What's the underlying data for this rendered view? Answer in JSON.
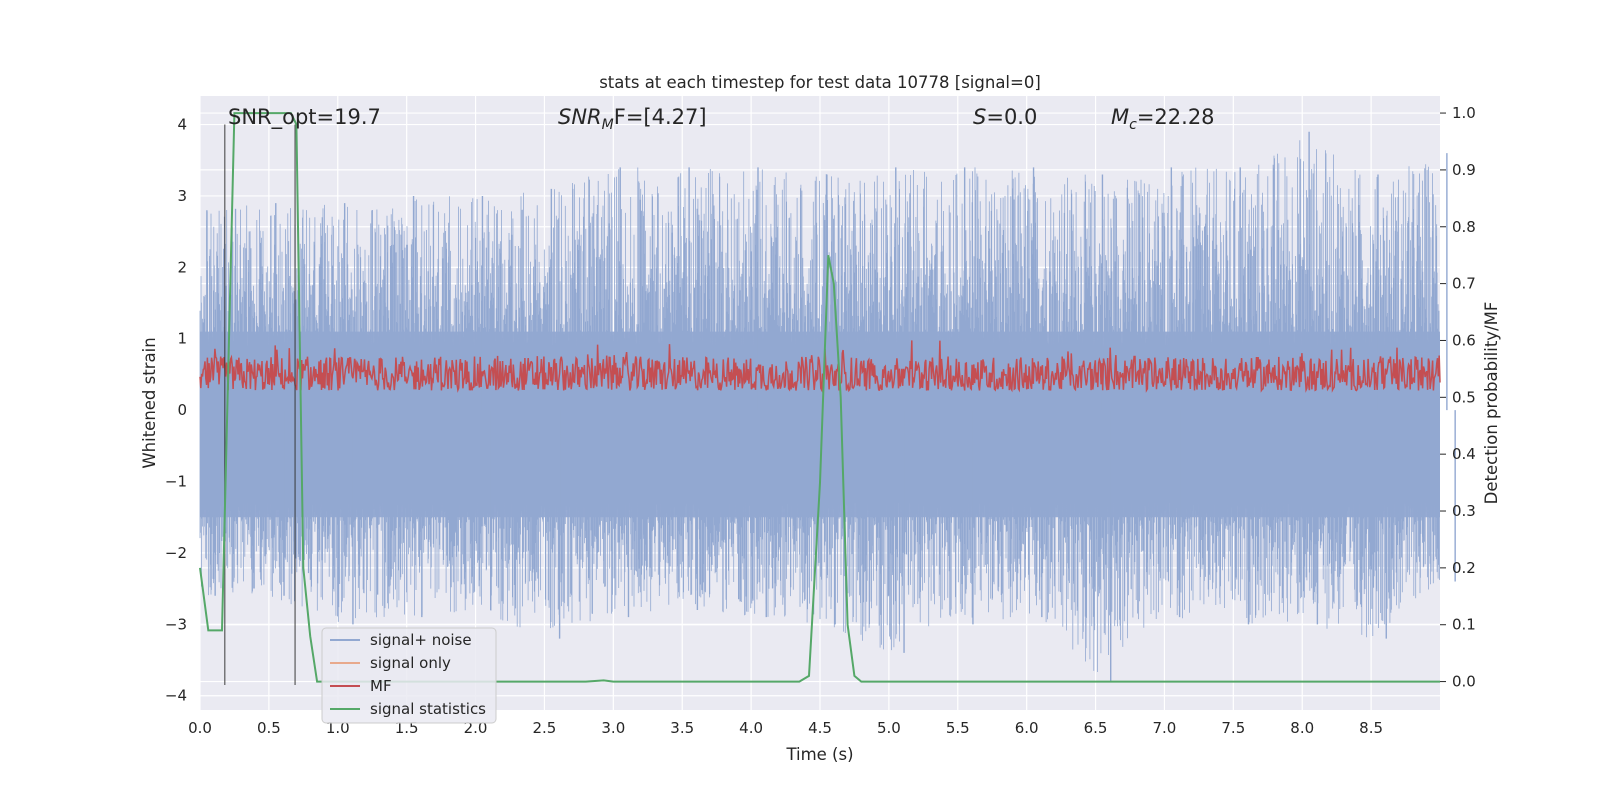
{
  "chart_data": {
    "type": "line",
    "title": "stats at each timestep for test data 10778 [signal=0]",
    "xlabel": "Time (s)",
    "ylabel": "Whitened strain",
    "y2label": "Detection probability/MF",
    "xlim": [
      0.0,
      9.0
    ],
    "ylim": [
      -4.2,
      4.4
    ],
    "y2lim": [
      -0.05,
      1.03
    ],
    "x_ticks": [
      "0.0",
      "0.5",
      "1.0",
      "1.5",
      "2.0",
      "2.5",
      "3.0",
      "3.5",
      "4.0",
      "4.5",
      "5.0",
      "5.5",
      "6.0",
      "6.5",
      "7.0",
      "7.5",
      "8.0",
      "8.5"
    ],
    "y_ticks": [
      "4",
      "3",
      "2",
      "1",
      "0",
      "−1",
      "−2",
      "−3",
      "−4"
    ],
    "y2_ticks": [
      "1.0",
      "0.9",
      "0.8",
      "0.7",
      "0.6",
      "0.5",
      "0.4",
      "0.3",
      "0.2",
      "0.1",
      "0.0"
    ],
    "grid": true,
    "legend_position": "lower-left",
    "annotations": {
      "snr_opt": "SNR_opt=19.7",
      "snr_mf_main": "SNR",
      "snr_mf_sub": "M",
      "snr_mf_rest": "F=[4.27]",
      "s_main": "S",
      "s_rest": "=0.0",
      "mc_main": "M",
      "mc_sub": "c",
      "mc_rest": "=22.28"
    },
    "vertical_lines_x": [
      0.18,
      0.69
    ],
    "series": [
      {
        "name": "signal+ noise",
        "color": "#92a8d1",
        "description_values": "whitened strain noise, roughly within [-4, 4]",
        "envelope": {
          "x": [
            0.0,
            0.5,
            1.0,
            1.5,
            2.0,
            2.5,
            3.0,
            3.5,
            4.0,
            4.5,
            5.0,
            5.5,
            6.0,
            6.5,
            7.0,
            7.5,
            8.0,
            8.5,
            9.0
          ],
          "max": [
            2.8,
            2.9,
            2.9,
            3.0,
            3.0,
            3.1,
            3.4,
            3.4,
            3.4,
            3.3,
            3.4,
            3.4,
            3.4,
            3.3,
            3.4,
            3.4,
            3.9,
            3.3,
            3.6
          ],
          "min": [
            -2.6,
            -2.6,
            -3.0,
            -2.9,
            -2.8,
            -3.2,
            -2.9,
            -2.8,
            -2.9,
            -3.0,
            -3.4,
            -3.0,
            -2.9,
            -3.8,
            -2.9,
            -3.0,
            -3.0,
            -3.2,
            -2.4
          ]
        }
      },
      {
        "name": "signal only",
        "color": "#e8a98c",
        "values": []
      },
      {
        "name": "MF",
        "color": "#c44e52",
        "description_values": "matched filter output on right axis, fluctuating about 0.5-0.6",
        "range": [
          0.5,
          0.6
        ]
      },
      {
        "name": "signal statistics",
        "color": "#55a868",
        "axis": "right",
        "x": [
          0.0,
          0.06,
          0.11,
          0.16,
          0.25,
          0.4,
          0.5,
          0.6,
          0.66,
          0.7,
          0.75,
          0.8,
          0.85,
          1.0,
          1.5,
          2.0,
          2.5,
          2.8,
          2.93,
          3.0,
          3.5,
          4.0,
          4.35,
          4.42,
          4.5,
          4.56,
          4.6,
          4.65,
          4.7,
          4.75,
          4.8,
          5.0,
          6.0,
          7.0,
          8.0,
          9.0
        ],
        "values": [
          0.2,
          0.09,
          0.09,
          0.09,
          1.0,
          1.0,
          1.0,
          1.0,
          1.0,
          0.98,
          0.2,
          0.08,
          0.0,
          0.0,
          0.0,
          0.0,
          0.0,
          0.0,
          0.002,
          0.0,
          0.0,
          0.0,
          0.0,
          0.01,
          0.35,
          0.75,
          0.7,
          0.5,
          0.1,
          0.01,
          0.0,
          0.0,
          0.0,
          0.0,
          0.0,
          0.0
        ]
      }
    ]
  }
}
